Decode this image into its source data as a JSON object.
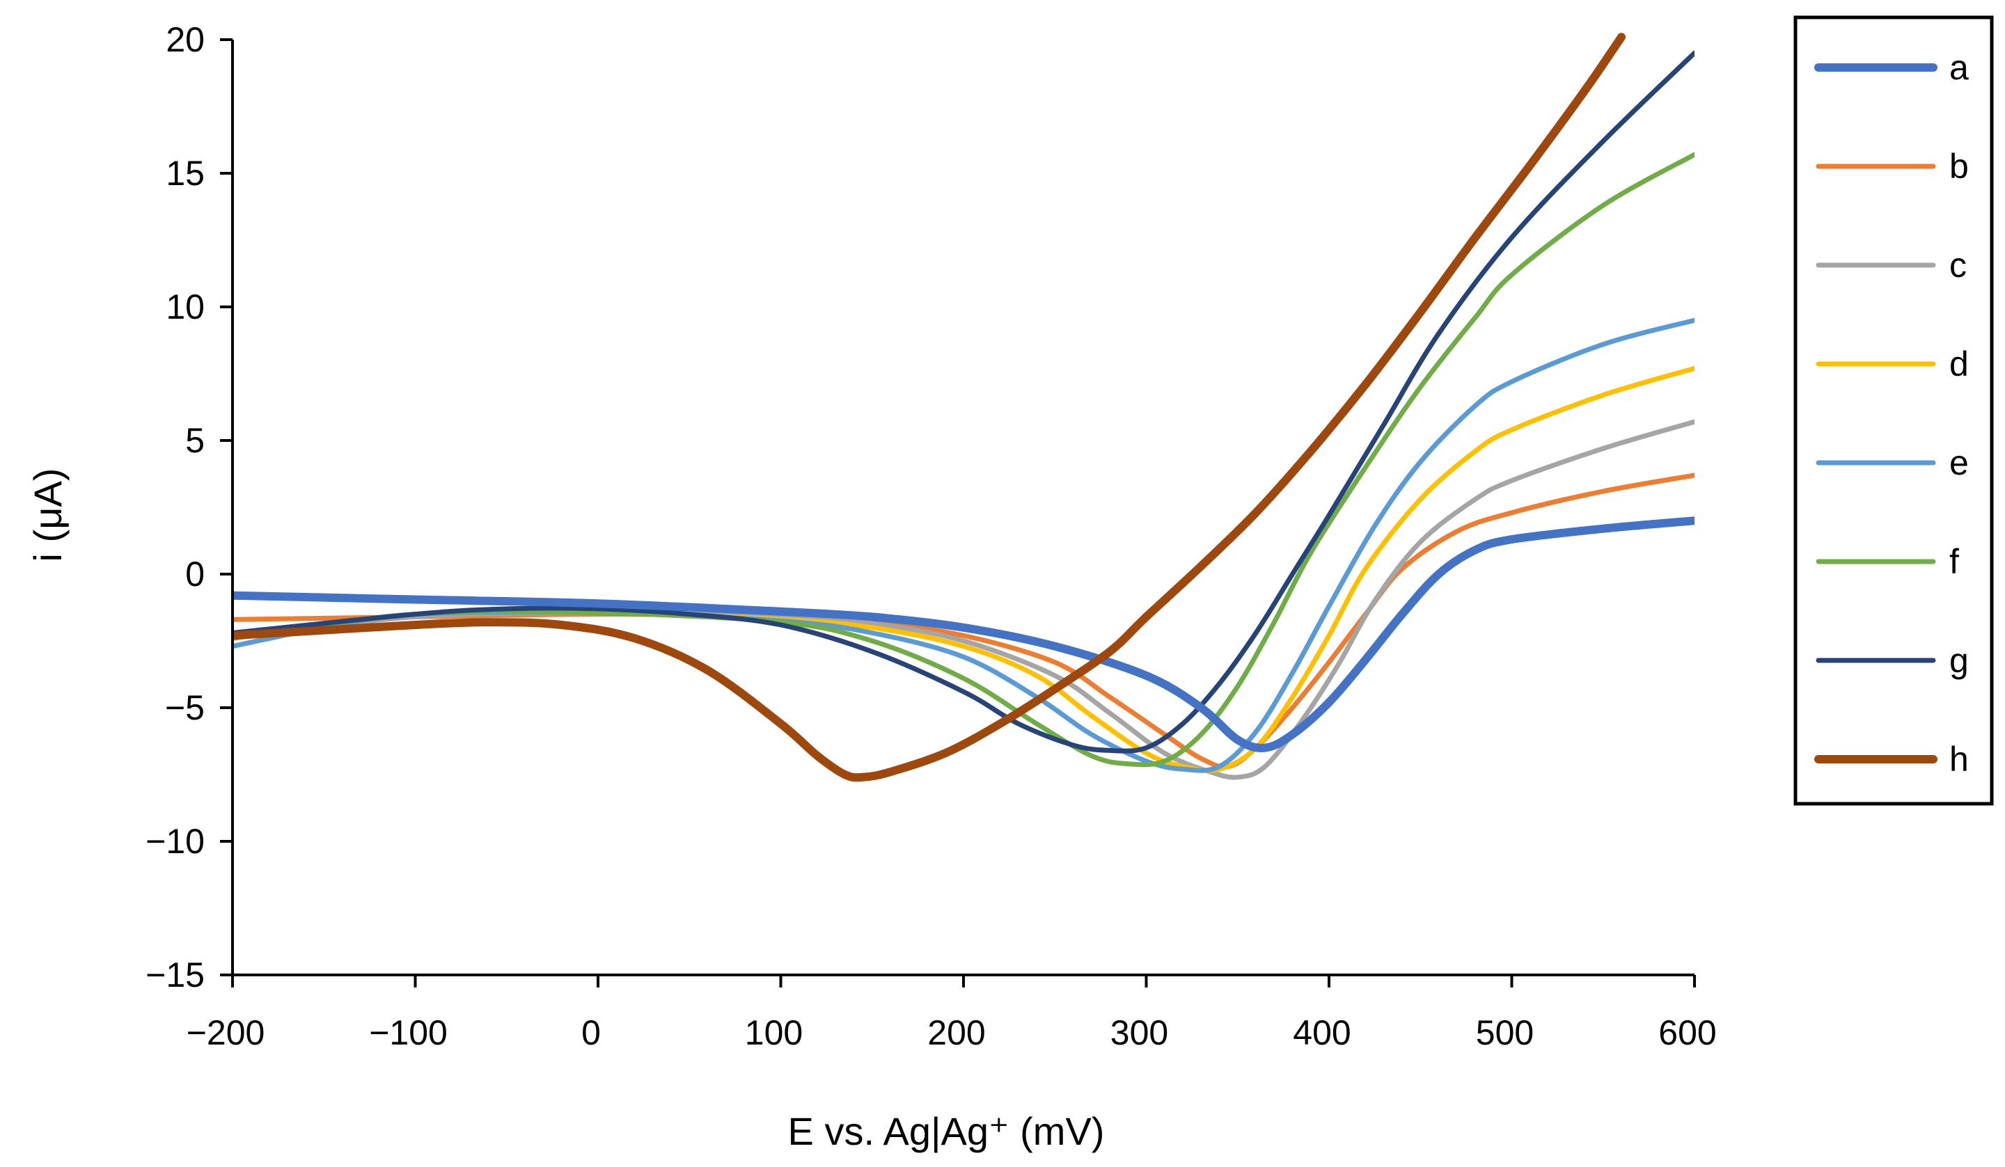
{
  "chart_data": {
    "type": "line",
    "title": "",
    "xlabel": "E vs. Ag|Ag⁺ (mV)",
    "ylabel": "i (μA)",
    "xlim": [
      -200,
      600
    ],
    "ylim": [
      -15,
      20
    ],
    "xticks": [
      -200,
      -100,
      0,
      100,
      200,
      300,
      400,
      500,
      600
    ],
    "yticks": [
      -15,
      -10,
      -5,
      0,
      5,
      10,
      15,
      20
    ],
    "xtick_labels": [
      "−200",
      "−100",
      "0",
      "100",
      "200",
      "300",
      "400",
      "500",
      "600"
    ],
    "ytick_labels": [
      "−15",
      "−10",
      "−5",
      "0",
      "5",
      "10",
      "15",
      "20"
    ],
    "grid": false,
    "legend_position": "right",
    "series": [
      {
        "name": "a",
        "color": "#4472C4",
        "width": 12,
        "points": [
          [
            -200,
            -0.8
          ],
          [
            -100,
            -0.95
          ],
          [
            0,
            -1.1
          ],
          [
            100,
            -1.4
          ],
          [
            150,
            -1.6
          ],
          [
            200,
            -2.0
          ],
          [
            250,
            -2.7
          ],
          [
            300,
            -3.8
          ],
          [
            330,
            -5.0
          ],
          [
            350,
            -6.2
          ],
          [
            365,
            -6.5
          ],
          [
            380,
            -6.0
          ],
          [
            400,
            -4.8
          ],
          [
            420,
            -3.2
          ],
          [
            440,
            -1.5
          ],
          [
            460,
            0.0
          ],
          [
            480,
            0.9
          ],
          [
            500,
            1.3
          ],
          [
            550,
            1.7
          ],
          [
            600,
            2.0
          ]
        ]
      },
      {
        "name": "b",
        "color": "#ED7D31",
        "width": 7,
        "points": [
          [
            -200,
            -1.7
          ],
          [
            -100,
            -1.6
          ],
          [
            0,
            -1.5
          ],
          [
            100,
            -1.6
          ],
          [
            150,
            -1.8
          ],
          [
            200,
            -2.3
          ],
          [
            250,
            -3.3
          ],
          [
            280,
            -4.6
          ],
          [
            310,
            -6.0
          ],
          [
            330,
            -6.9
          ],
          [
            345,
            -7.2
          ],
          [
            360,
            -6.5
          ],
          [
            380,
            -5.0
          ],
          [
            400,
            -3.3
          ],
          [
            420,
            -1.5
          ],
          [
            440,
            0.2
          ],
          [
            470,
            1.6
          ],
          [
            500,
            2.3
          ],
          [
            550,
            3.1
          ],
          [
            600,
            3.7
          ]
        ]
      },
      {
        "name": "c",
        "color": "#A5A5A5",
        "width": 7,
        "points": [
          [
            -200,
            -2.4
          ],
          [
            -100,
            -1.6
          ],
          [
            0,
            -1.45
          ],
          [
            100,
            -1.6
          ],
          [
            150,
            -1.85
          ],
          [
            200,
            -2.5
          ],
          [
            250,
            -3.8
          ],
          [
            280,
            -5.2
          ],
          [
            310,
            -6.7
          ],
          [
            335,
            -7.4
          ],
          [
            350,
            -7.6
          ],
          [
            365,
            -7.2
          ],
          [
            385,
            -5.5
          ],
          [
            405,
            -3.4
          ],
          [
            425,
            -1.0
          ],
          [
            450,
            1.2
          ],
          [
            480,
            2.8
          ],
          [
            500,
            3.5
          ],
          [
            550,
            4.7
          ],
          [
            600,
            5.7
          ]
        ]
      },
      {
        "name": "d",
        "color": "#FFC000",
        "width": 7,
        "points": [
          [
            -200,
            -2.4
          ],
          [
            -100,
            -1.5
          ],
          [
            0,
            -1.45
          ],
          [
            100,
            -1.7
          ],
          [
            150,
            -2.0
          ],
          [
            200,
            -2.7
          ],
          [
            240,
            -3.8
          ],
          [
            270,
            -5.3
          ],
          [
            300,
            -6.7
          ],
          [
            320,
            -7.2
          ],
          [
            340,
            -7.3
          ],
          [
            360,
            -6.5
          ],
          [
            380,
            -4.6
          ],
          [
            400,
            -2.3
          ],
          [
            420,
            0.2
          ],
          [
            450,
            2.8
          ],
          [
            480,
            4.6
          ],
          [
            500,
            5.4
          ],
          [
            550,
            6.7
          ],
          [
            600,
            7.7
          ]
        ]
      },
      {
        "name": "e",
        "color": "#5B9BD5",
        "width": 7,
        "points": [
          [
            -200,
            -2.7
          ],
          [
            -150,
            -2.0
          ],
          [
            -100,
            -1.5
          ],
          [
            0,
            -1.45
          ],
          [
            100,
            -1.75
          ],
          [
            150,
            -2.2
          ],
          [
            200,
            -3.1
          ],
          [
            240,
            -4.6
          ],
          [
            270,
            -6.0
          ],
          [
            300,
            -7.0
          ],
          [
            320,
            -7.3
          ],
          [
            340,
            -7.2
          ],
          [
            360,
            -5.9
          ],
          [
            380,
            -3.7
          ],
          [
            400,
            -1.2
          ],
          [
            425,
            1.8
          ],
          [
            450,
            4.2
          ],
          [
            480,
            6.3
          ],
          [
            500,
            7.2
          ],
          [
            550,
            8.6
          ],
          [
            600,
            9.5
          ]
        ]
      },
      {
        "name": "f",
        "color": "#70AD47",
        "width": 7,
        "points": [
          [
            -200,
            -2.4
          ],
          [
            -100,
            -1.5
          ],
          [
            0,
            -1.45
          ],
          [
            100,
            -1.8
          ],
          [
            150,
            -2.5
          ],
          [
            200,
            -3.9
          ],
          [
            240,
            -5.6
          ],
          [
            270,
            -6.8
          ],
          [
            290,
            -7.1
          ],
          [
            310,
            -7.0
          ],
          [
            330,
            -6.0
          ],
          [
            350,
            -4.2
          ],
          [
            370,
            -1.8
          ],
          [
            390,
            0.8
          ],
          [
            420,
            4.0
          ],
          [
            450,
            7.0
          ],
          [
            480,
            9.6
          ],
          [
            500,
            11.2
          ],
          [
            550,
            13.8
          ],
          [
            600,
            15.7
          ]
        ]
      },
      {
        "name": "g",
        "color": "#264478",
        "width": 7,
        "points": [
          [
            -200,
            -2.2
          ],
          [
            -100,
            -1.5
          ],
          [
            -50,
            -1.3
          ],
          [
            0,
            -1.3
          ],
          [
            50,
            -1.5
          ],
          [
            100,
            -1.9
          ],
          [
            150,
            -2.9
          ],
          [
            200,
            -4.4
          ],
          [
            230,
            -5.6
          ],
          [
            260,
            -6.4
          ],
          [
            280,
            -6.6
          ],
          [
            300,
            -6.5
          ],
          [
            320,
            -5.6
          ],
          [
            340,
            -4.1
          ],
          [
            360,
            -2.2
          ],
          [
            380,
            0.0
          ],
          [
            400,
            2.2
          ],
          [
            430,
            5.6
          ],
          [
            460,
            9.0
          ],
          [
            500,
            12.6
          ],
          [
            550,
            16.2
          ],
          [
            600,
            19.5
          ]
        ]
      },
      {
        "name": "h",
        "color": "#9E480E",
        "width": 12,
        "points": [
          [
            -200,
            -2.3
          ],
          [
            -150,
            -2.1
          ],
          [
            -100,
            -1.9
          ],
          [
            -60,
            -1.8
          ],
          [
            -20,
            -1.9
          ],
          [
            20,
            -2.4
          ],
          [
            60,
            -3.6
          ],
          [
            100,
            -5.6
          ],
          [
            120,
            -6.8
          ],
          [
            135,
            -7.5
          ],
          [
            145,
            -7.6
          ],
          [
            160,
            -7.4
          ],
          [
            190,
            -6.7
          ],
          [
            220,
            -5.6
          ],
          [
            250,
            -4.3
          ],
          [
            280,
            -2.9
          ],
          [
            300,
            -1.6
          ],
          [
            330,
            0.3
          ],
          [
            360,
            2.3
          ],
          [
            390,
            4.6
          ],
          [
            420,
            7.1
          ],
          [
            450,
            9.8
          ],
          [
            480,
            12.6
          ],
          [
            510,
            15.3
          ],
          [
            540,
            18.1
          ],
          [
            560,
            20.1
          ]
        ]
      }
    ]
  }
}
